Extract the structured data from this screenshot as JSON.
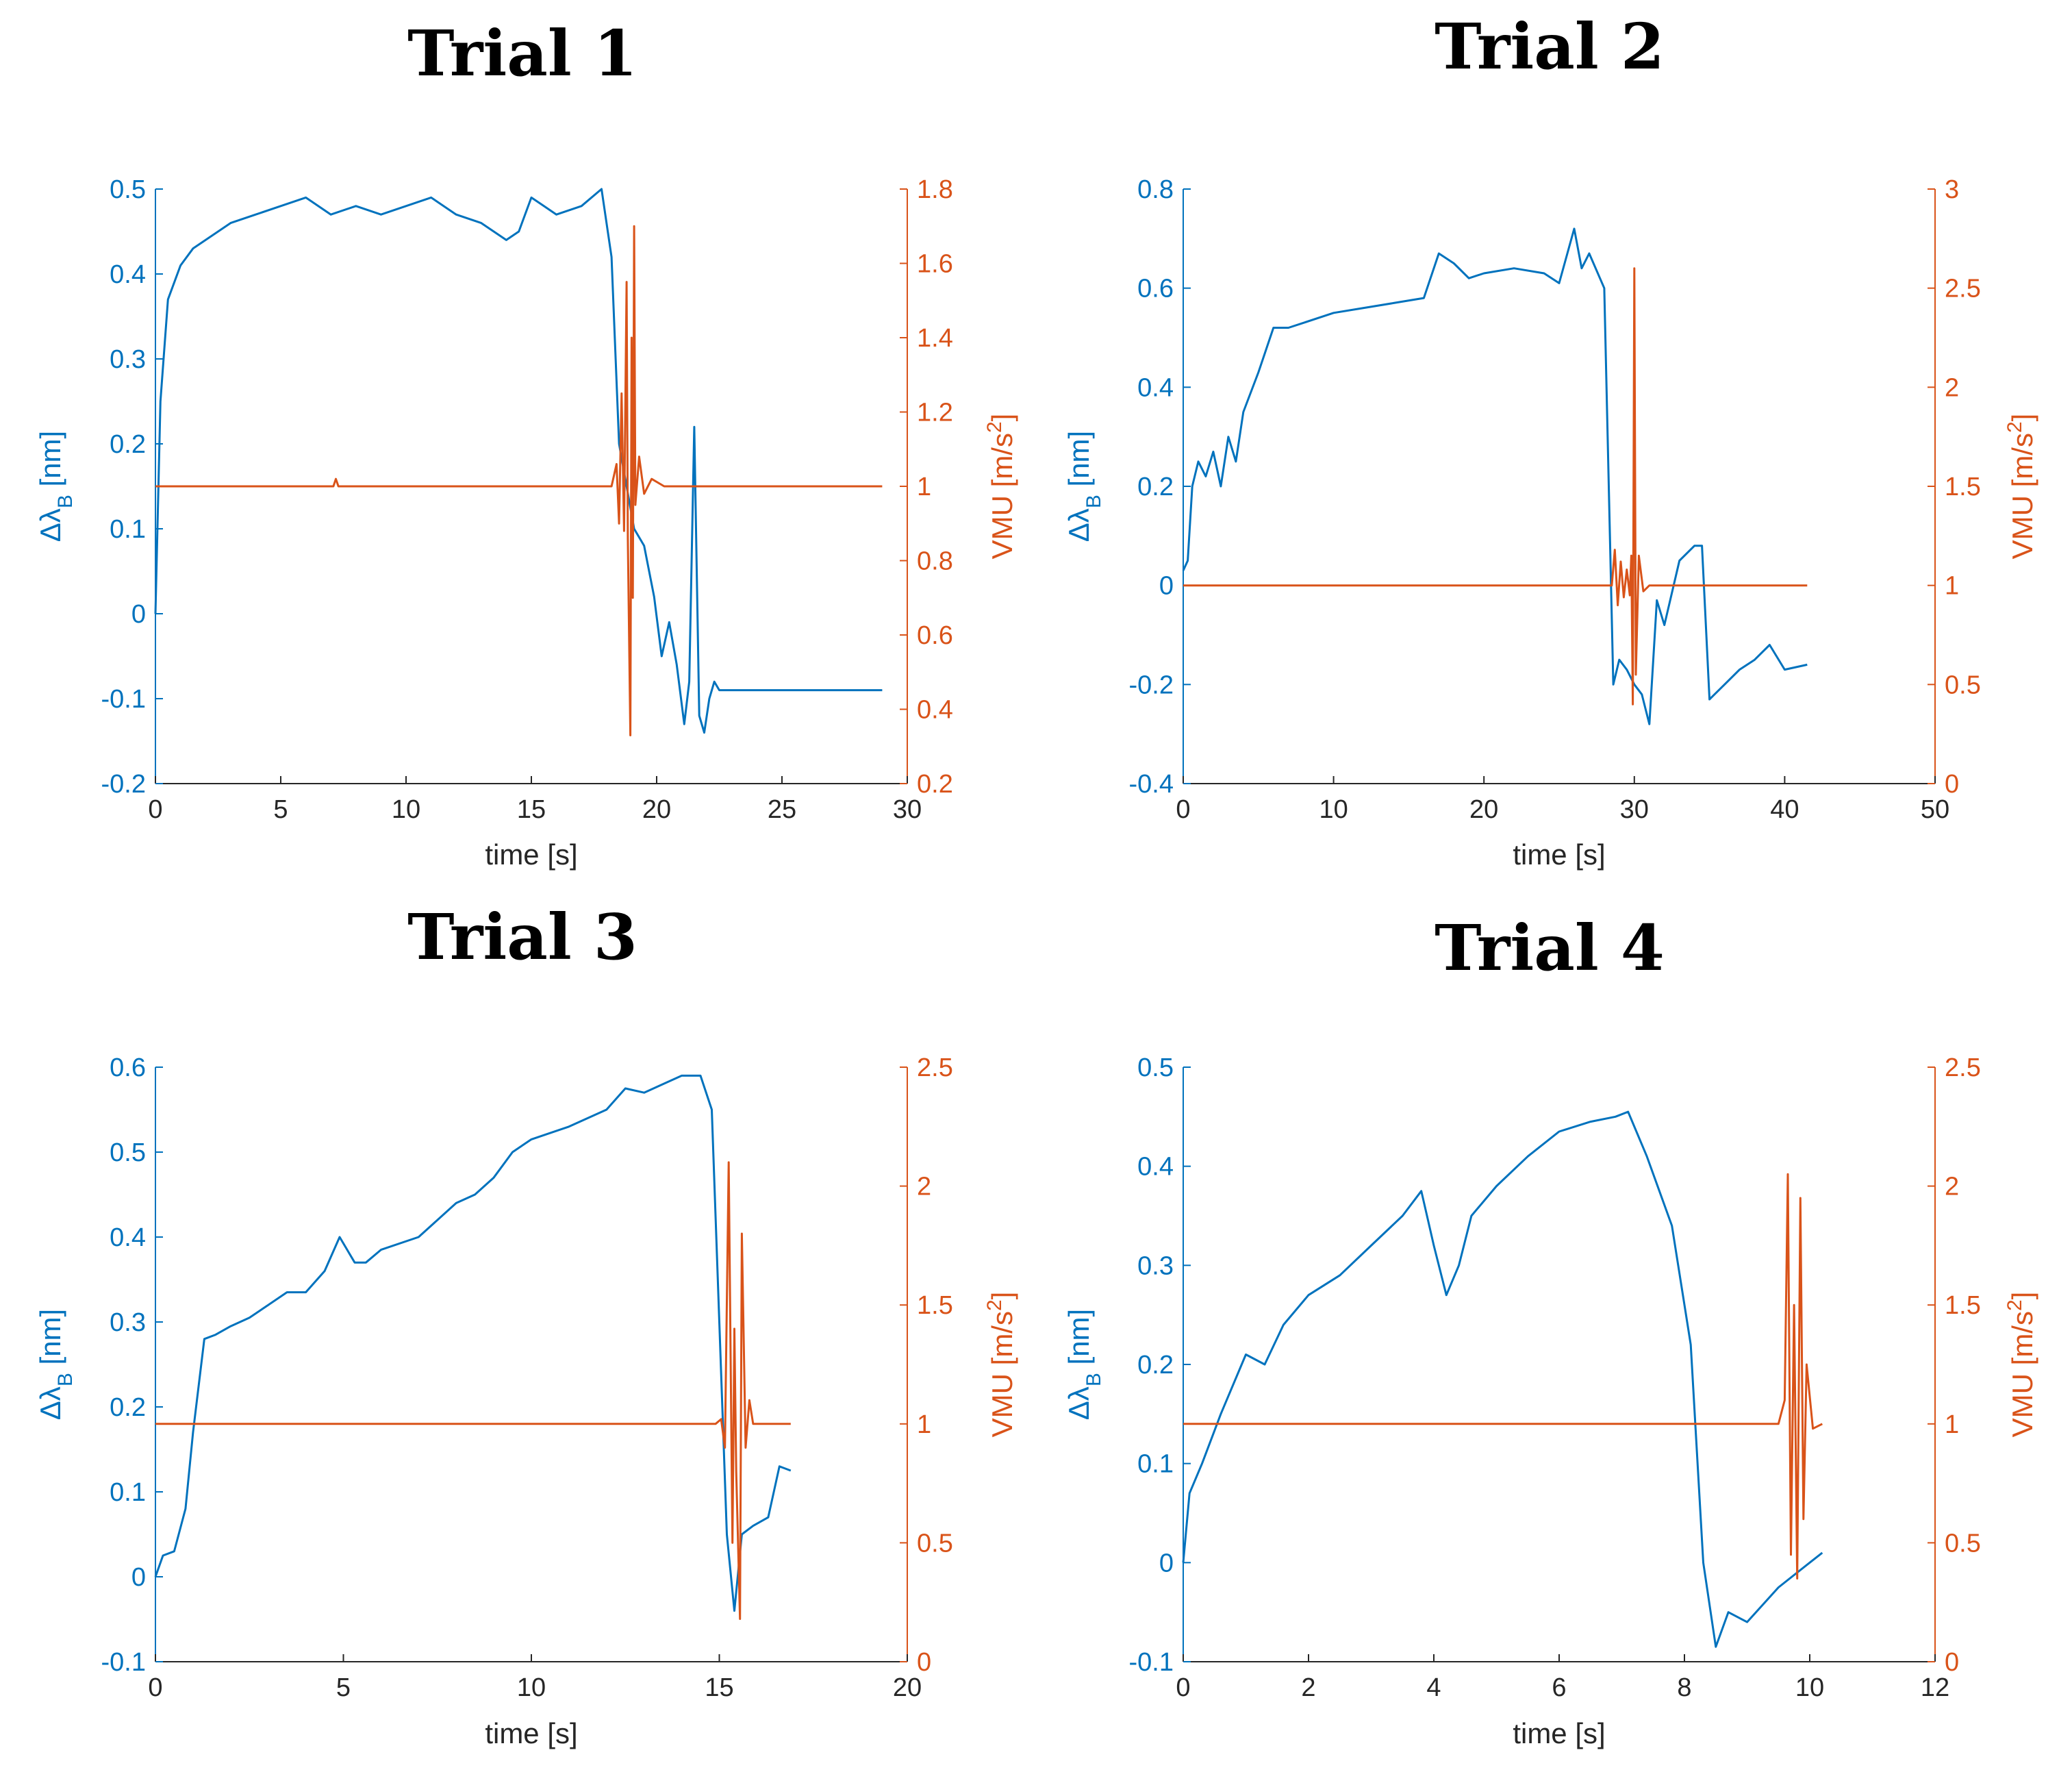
{
  "figure": {
    "colors": {
      "left": "#0072BD",
      "right": "#D95319",
      "xaxis": "#262626",
      "bg": "#ffffff"
    }
  },
  "chart_data": [
    {
      "type": "line",
      "title": "Trial 1",
      "xlabel": "time [s]",
      "ylabel_left": "Δλ_B [nm]",
      "ylabel_right": "VMU [m/s²]",
      "xlim": [
        0,
        30
      ],
      "ylim_left": [
        -0.2,
        0.5
      ],
      "ylim_right": [
        0.2,
        1.8
      ],
      "xticks": [
        0,
        5,
        10,
        15,
        20,
        25,
        30
      ],
      "xtick_labels": [
        "0",
        "5",
        "10",
        "15",
        "20",
        "25",
        "30"
      ],
      "yticks_left": [
        -0.2,
        -0.1,
        0,
        0.1,
        0.2,
        0.3,
        0.4,
        0.5
      ],
      "ytick_labels_left": [
        "-0.2",
        "-0.1",
        "0",
        "0.1",
        "0.2",
        "0.3",
        "0.4",
        "0.5"
      ],
      "yticks_right": [
        0.2,
        0.4,
        0.6,
        0.8,
        1,
        1.2,
        1.4,
        1.6,
        1.8
      ],
      "ytick_labels_right": [
        "0.2",
        "0.4",
        "0.6",
        "0.8",
        "1",
        "1.2",
        "1.4",
        "1.6",
        "1.8"
      ],
      "series": [
        {
          "name": "Δλ_B",
          "axis": "left",
          "color": "#0072BD",
          "x": [
            0,
            0.2,
            0.5,
            1,
            1.5,
            2,
            3,
            4,
            5,
            6,
            7,
            8,
            9,
            10,
            11,
            12,
            13,
            14,
            14.5,
            15,
            15.5,
            16,
            17,
            17.8,
            18.2,
            18.5,
            18.8,
            19.1,
            19.5,
            19.9,
            20.2,
            20.5,
            20.8,
            21.1,
            21.3,
            21.5,
            21.7,
            21.9,
            22.1,
            22.3,
            22.5,
            22.7,
            25,
            29
          ],
          "y": [
            0,
            0.25,
            0.37,
            0.41,
            0.43,
            0.44,
            0.46,
            0.47,
            0.48,
            0.49,
            0.47,
            0.48,
            0.47,
            0.48,
            0.49,
            0.47,
            0.46,
            0.44,
            0.45,
            0.49,
            0.48,
            0.47,
            0.48,
            0.5,
            0.42,
            0.2,
            0.15,
            0.1,
            0.08,
            0.02,
            -0.05,
            -0.01,
            -0.06,
            -0.13,
            -0.08,
            0.22,
            -0.12,
            -0.14,
            -0.1,
            -0.08,
            -0.09,
            -0.09,
            -0.09,
            -0.09
          ]
        },
        {
          "name": "VMU",
          "axis": "right",
          "color": "#D95319",
          "x": [
            0,
            7.1,
            7.2,
            7.3,
            18.2,
            18.4,
            18.5,
            18.6,
            18.7,
            18.8,
            18.85,
            18.95,
            19.0,
            19.05,
            19.1,
            19.15,
            19.3,
            19.5,
            19.8,
            20.3,
            29
          ],
          "y": [
            1,
            1,
            1.02,
            1,
            1,
            1.06,
            0.9,
            1.25,
            0.88,
            1.55,
            0.86,
            0.33,
            1.4,
            0.7,
            1.7,
            0.95,
            1.08,
            0.98,
            1.02,
            1,
            1
          ]
        }
      ]
    },
    {
      "type": "line",
      "title": "Trial 2",
      "xlabel": "time [s]",
      "ylabel_left": "Δλ_B [nm]",
      "ylabel_right": "VMU [m/s²]",
      "xlim": [
        0,
        50
      ],
      "ylim_left": [
        -0.4,
        0.8
      ],
      "ylim_right": [
        0,
        3
      ],
      "xticks": [
        0,
        10,
        20,
        30,
        40,
        50
      ],
      "xtick_labels": [
        "0",
        "10",
        "20",
        "30",
        "40",
        "50"
      ],
      "yticks_left": [
        -0.4,
        -0.2,
        0,
        0.2,
        0.4,
        0.6,
        0.8
      ],
      "ytick_labels_left": [
        "-0.4",
        "-0.2",
        "0",
        "0.2",
        "0.4",
        "0.6",
        "0.8"
      ],
      "yticks_right": [
        0,
        0.5,
        1,
        1.5,
        2,
        2.5,
        3
      ],
      "ytick_labels_right": [
        "0",
        "0.5",
        "1",
        "1.5",
        "2",
        "2.5",
        "3"
      ],
      "series": [
        {
          "name": "Δλ_B",
          "axis": "left",
          "color": "#0072BD",
          "x": [
            0,
            0.3,
            0.6,
            1,
            1.5,
            2,
            2.5,
            3,
            3.5,
            4,
            5,
            6,
            7,
            8,
            10,
            12,
            14,
            16,
            17,
            18,
            19,
            20,
            22,
            24,
            25,
            26,
            26.5,
            27,
            28,
            28.3,
            28.6,
            29,
            29.5,
            30,
            30.5,
            31,
            31.5,
            32,
            33,
            34,
            34.5,
            35,
            36,
            37,
            38,
            39,
            40,
            41.5
          ],
          "y": [
            0.03,
            0.05,
            0.2,
            0.25,
            0.22,
            0.27,
            0.2,
            0.3,
            0.25,
            0.35,
            0.43,
            0.52,
            0.52,
            0.53,
            0.55,
            0.56,
            0.57,
            0.58,
            0.67,
            0.65,
            0.62,
            0.63,
            0.64,
            0.63,
            0.61,
            0.72,
            0.64,
            0.67,
            0.6,
            0.2,
            -0.2,
            -0.15,
            -0.17,
            -0.2,
            -0.22,
            -0.28,
            -0.03,
            -0.08,
            0.05,
            0.08,
            0.08,
            -0.23,
            -0.2,
            -0.17,
            -0.15,
            -0.12,
            -0.17,
            -0.16
          ]
        },
        {
          "name": "VMU",
          "axis": "right",
          "color": "#D95319",
          "x": [
            0,
            28.5,
            28.7,
            28.9,
            29.1,
            29.3,
            29.5,
            29.7,
            29.8,
            29.9,
            30.0,
            30.1,
            30.3,
            30.6,
            31,
            41.5
          ],
          "y": [
            1,
            1,
            1.18,
            0.9,
            1.12,
            0.94,
            1.08,
            0.95,
            1.15,
            0.4,
            2.6,
            0.55,
            1.15,
            0.97,
            1,
            1
          ]
        }
      ]
    },
    {
      "type": "line",
      "title": "Trial 3",
      "xlabel": "time [s]",
      "ylabel_left": "Δλ_B [nm]",
      "ylabel_right": "VMU [m/s²]",
      "xlim": [
        0,
        20
      ],
      "ylim_left": [
        -0.1,
        0.6
      ],
      "ylim_right": [
        0,
        2.5
      ],
      "xticks": [
        0,
        5,
        10,
        15,
        20
      ],
      "xtick_labels": [
        "0",
        "5",
        "10",
        "15",
        "20"
      ],
      "yticks_left": [
        -0.1,
        0,
        0.1,
        0.2,
        0.3,
        0.4,
        0.5,
        0.6
      ],
      "ytick_labels_left": [
        "-0.1",
        "0",
        "0.1",
        "0.2",
        "0.3",
        "0.4",
        "0.5",
        "0.6"
      ],
      "yticks_right": [
        0,
        0.5,
        1,
        1.5,
        2,
        2.5
      ],
      "ytick_labels_right": [
        "0",
        "0.5",
        "1",
        "1.5",
        "2",
        "2.5"
      ],
      "series": [
        {
          "name": "Δλ_B",
          "axis": "left",
          "color": "#0072BD",
          "x": [
            0,
            0.2,
            0.5,
            0.8,
            1,
            1.3,
            1.6,
            2,
            2.5,
            3,
            3.5,
            4,
            4.5,
            4.9,
            5.3,
            5.6,
            6,
            7,
            8,
            8.5,
            9,
            9.5,
            10,
            11,
            12,
            12.5,
            13,
            13.5,
            14,
            14.5,
            14.8,
            15,
            15.2,
            15.4,
            15.6,
            15.9,
            16.3,
            16.6,
            16.9
          ],
          "y": [
            0,
            0.025,
            0.03,
            0.08,
            0.17,
            0.28,
            0.285,
            0.295,
            0.305,
            0.32,
            0.335,
            0.335,
            0.36,
            0.4,
            0.37,
            0.37,
            0.385,
            0.4,
            0.44,
            0.45,
            0.47,
            0.5,
            0.515,
            0.53,
            0.55,
            0.575,
            0.57,
            0.58,
            0.59,
            0.59,
            0.55,
            0.3,
            0.05,
            -0.04,
            0.05,
            0.06,
            0.07,
            0.13,
            0.125
          ]
        },
        {
          "name": "VMU",
          "axis": "right",
          "color": "#D95319",
          "x": [
            0,
            14.9,
            15.05,
            15.15,
            15.25,
            15.35,
            15.4,
            15.45,
            15.55,
            15.6,
            15.7,
            15.8,
            15.9,
            16.9
          ],
          "y": [
            1,
            1,
            1.02,
            0.9,
            2.1,
            0.5,
            1.4,
            0.8,
            0.18,
            1.8,
            0.9,
            1.1,
            1,
            1
          ]
        }
      ]
    },
    {
      "type": "line",
      "title": "Trial 4",
      "xlabel": "time [s]",
      "ylabel_left": "Δλ_B [nm]",
      "ylabel_right": "VMU [m/s²]",
      "xlim": [
        0,
        12
      ],
      "ylim_left": [
        -0.1,
        0.5
      ],
      "ylim_right": [
        0,
        2.5
      ],
      "xticks": [
        0,
        2,
        4,
        6,
        8,
        10,
        12
      ],
      "xtick_labels": [
        "0",
        "2",
        "4",
        "6",
        "8",
        "10",
        "12"
      ],
      "yticks_left": [
        -0.1,
        0,
        0.1,
        0.2,
        0.3,
        0.4,
        0.5
      ],
      "ytick_labels_left": [
        "-0.1",
        "0",
        "0.1",
        "0.2",
        "0.3",
        "0.4",
        "0.5"
      ],
      "yticks_right": [
        0,
        0.5,
        1,
        1.5,
        2,
        2.5
      ],
      "ytick_labels_right": [
        "0",
        "0.5",
        "1",
        "1.5",
        "2",
        "2.5"
      ],
      "series": [
        {
          "name": "Δλ_B",
          "axis": "left",
          "color": "#0072BD",
          "x": [
            0,
            0.1,
            0.3,
            0.6,
            1,
            1.3,
            1.6,
            2,
            2.5,
            3,
            3.5,
            3.8,
            4.0,
            4.2,
            4.4,
            4.6,
            5,
            5.5,
            6,
            6.5,
            6.9,
            7.1,
            7.4,
            7.8,
            8.1,
            8.3,
            8.5,
            8.7,
            9,
            9.5,
            10,
            10.2
          ],
          "y": [
            0,
            0.07,
            0.1,
            0.15,
            0.21,
            0.2,
            0.24,
            0.27,
            0.29,
            0.32,
            0.35,
            0.375,
            0.32,
            0.27,
            0.3,
            0.35,
            0.38,
            0.41,
            0.435,
            0.445,
            0.45,
            0.455,
            0.41,
            0.34,
            0.22,
            0.0,
            -0.085,
            -0.05,
            -0.06,
            -0.025,
            0.0,
            0.01
          ]
        },
        {
          "name": "VMU",
          "axis": "right",
          "color": "#D95319",
          "x": [
            0,
            9.5,
            9.6,
            9.65,
            9.7,
            9.75,
            9.8,
            9.85,
            9.9,
            9.95,
            10.05,
            10.2
          ],
          "y": [
            1,
            1,
            1.1,
            2.05,
            0.45,
            1.5,
            0.35,
            1.95,
            0.6,
            1.25,
            0.98,
            1
          ]
        }
      ]
    }
  ]
}
